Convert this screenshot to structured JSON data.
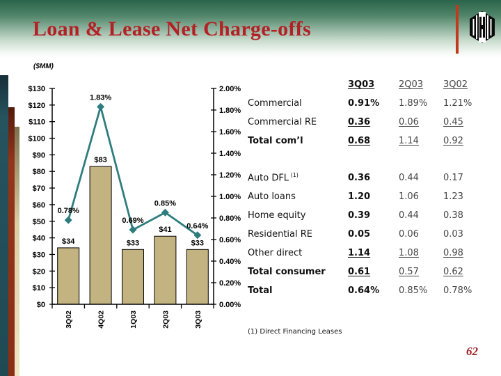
{
  "header": {
    "title": "Loan & Lease Net Charge-offs",
    "logo": "huntington-hexagon-logo"
  },
  "chart_data": {
    "type": "bar",
    "subtype": "combo-bar-line",
    "units_label": "($MM)",
    "categories": [
      "3Q02",
      "4Q02",
      "1Q03",
      "2Q03",
      "3Q03"
    ],
    "series": [
      {
        "name": "net-charge-offs-dollars",
        "type": "bar",
        "axis": "left",
        "color": "#c3b380",
        "values": [
          34,
          83,
          33,
          41,
          33
        ],
        "labels": [
          "$34",
          "$83",
          "$33",
          "$41",
          "$33"
        ]
      },
      {
        "name": "net-charge-off-ratio",
        "type": "line",
        "axis": "right",
        "color": "#2e7d7e",
        "values": [
          0.78,
          1.83,
          0.69,
          0.85,
          0.64
        ],
        "labels": [
          "0.78%",
          "1.83%",
          "0.69%",
          "0.85%",
          "0.64%"
        ]
      }
    ],
    "left_axis": {
      "min": 0,
      "max": 130,
      "step": 10,
      "tick_labels": [
        "$0",
        "$10",
        "$20",
        "$30",
        "$40",
        "$50",
        "$60",
        "$70",
        "$80",
        "$90",
        "$100",
        "$110",
        "$120",
        "$130"
      ]
    },
    "right_axis": {
      "min": 0,
      "max": 2.0,
      "step": 0.2,
      "tick_labels": [
        "0.00%",
        "0.20%",
        "0.40%",
        "0.60%",
        "0.80%",
        "1.00%",
        "1.20%",
        "1.40%",
        "1.60%",
        "1.80%",
        "2.00%"
      ]
    },
    "grid": false,
    "legend": "none"
  },
  "table": {
    "col_headers": [
      "3Q03",
      "2Q03",
      "3Q02"
    ],
    "rows": [
      {
        "label": "Commercial",
        "values": [
          "0.91%",
          "1.89%",
          "1.21%"
        ],
        "label_bold": false,
        "underline": false,
        "gap_before": false
      },
      {
        "label": "Commercial RE",
        "values": [
          "0.36",
          "0.06",
          "0.45"
        ],
        "label_bold": false,
        "underline": true,
        "gap_before": false
      },
      {
        "label": "Total com’l",
        "values": [
          "0.68",
          "1.14",
          "0.92"
        ],
        "label_bold": true,
        "underline": true,
        "gap_before": false
      },
      {
        "label": "Auto DFL",
        "sup": "(1)",
        "values": [
          "0.36",
          "0.44",
          "0.17"
        ],
        "label_bold": false,
        "underline": false,
        "gap_before": true
      },
      {
        "label": "Auto loans",
        "values": [
          "1.20",
          "1.06",
          "1.23"
        ],
        "label_bold": false,
        "underline": false,
        "gap_before": false
      },
      {
        "label": "Home equity",
        "values": [
          "0.39",
          "0.44",
          "0.38"
        ],
        "label_bold": false,
        "underline": false,
        "gap_before": false
      },
      {
        "label": "Residential RE",
        "values": [
          "0.05",
          "0.06",
          "0.03"
        ],
        "label_bold": false,
        "underline": false,
        "gap_before": false
      },
      {
        "label": "Other direct",
        "values": [
          "1.14",
          "1.08",
          "0.98"
        ],
        "label_bold": false,
        "underline": true,
        "gap_before": false
      },
      {
        "label": "Total consumer",
        "values": [
          "0.61",
          "0.57",
          "0.62"
        ],
        "label_bold": true,
        "underline": true,
        "gap_before": false
      },
      {
        "label": "Total",
        "values": [
          "0.64%",
          "0.85%",
          "0.78%"
        ],
        "label_bold": true,
        "underline": false,
        "gap_before": false
      }
    ]
  },
  "footnote": "(1) Direct Financing Leases",
  "page_number": "62"
}
